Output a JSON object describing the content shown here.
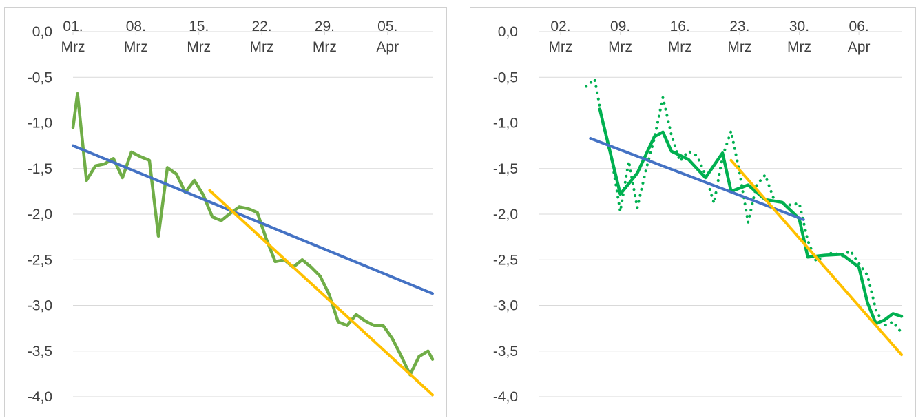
{
  "colors": {
    "measured": "#70ad47",
    "measured_dark": "#00b050",
    "trend_early": "#4472c4",
    "trend_late": "#ffc000",
    "grid": "#d9d9d9",
    "text": "#404040"
  },
  "chart_data": [
    {
      "type": "line",
      "title": "",
      "xlabel": "",
      "ylabel": "",
      "x_axis_position": "top",
      "grid": true,
      "ylim": [
        -4.0,
        0.0
      ],
      "yticks": [
        "0,0",
        "-0,5",
        "-1,0",
        "-1,5",
        "-2,0",
        "-2,5",
        "-3,0",
        "-3,5",
        "-4,0"
      ],
      "x_ticks": [
        {
          "day": 0,
          "line1": "01.",
          "line2": "Mrz"
        },
        {
          "day": 7,
          "line1": "08.",
          "line2": "Mrz"
        },
        {
          "day": 14,
          "line1": "15.",
          "line2": "Mrz"
        },
        {
          "day": 21,
          "line1": "22.",
          "line2": "Mrz"
        },
        {
          "day": 28,
          "line1": "29.",
          "line2": "Mrz"
        },
        {
          "day": 35,
          "line1": "05.",
          "line2": "Apr"
        }
      ],
      "x_range_days": [
        0,
        40
      ],
      "series": [
        {
          "style": "solid",
          "color_key": "measured",
          "points": [
            [
              0,
              -1.05
            ],
            [
              0.5,
              -0.68
            ],
            [
              1.5,
              -1.63
            ],
            [
              2.5,
              -1.47
            ],
            [
              3.5,
              -1.45
            ],
            [
              4.5,
              -1.39
            ],
            [
              5.5,
              -1.6
            ],
            [
              6.5,
              -1.32
            ],
            [
              7.5,
              -1.37
            ],
            [
              8.5,
              -1.41
            ],
            [
              9.5,
              -2.24
            ],
            [
              10.5,
              -1.49
            ],
            [
              11.5,
              -1.56
            ],
            [
              12.5,
              -1.76
            ],
            [
              13.5,
              -1.63
            ],
            [
              14.5,
              -1.79
            ],
            [
              15.5,
              -2.03
            ],
            [
              16.5,
              -2.07
            ],
            [
              17.5,
              -1.99
            ],
            [
              18.5,
              -1.92
            ],
            [
              19.5,
              -1.94
            ],
            [
              20.5,
              -1.98
            ],
            [
              21.5,
              -2.27
            ],
            [
              22.5,
              -2.52
            ],
            [
              23.5,
              -2.5
            ],
            [
              24.5,
              -2.58
            ],
            [
              25.5,
              -2.5
            ],
            [
              26.5,
              -2.58
            ],
            [
              27.5,
              -2.68
            ],
            [
              28.5,
              -2.88
            ],
            [
              29.5,
              -3.18
            ],
            [
              30.5,
              -3.22
            ],
            [
              31.5,
              -3.1
            ],
            [
              32.5,
              -3.17
            ],
            [
              33.5,
              -3.22
            ],
            [
              34.5,
              -3.22
            ],
            [
              35.5,
              -3.36
            ],
            [
              36.5,
              -3.55
            ],
            [
              37.5,
              -3.76
            ],
            [
              38.5,
              -3.56
            ],
            [
              39.5,
              -3.5
            ],
            [
              40.0,
              -3.59
            ]
          ]
        },
        {
          "style": "trend",
          "color_key": "trend_early",
          "points": [
            [
              0,
              -1.25
            ],
            [
              40.0,
              -2.87
            ]
          ]
        },
        {
          "style": "trend",
          "color_key": "trend_late",
          "points": [
            [
              15.2,
              -1.74
            ],
            [
              40.0,
              -3.98
            ]
          ]
        }
      ]
    },
    {
      "type": "line",
      "title": "",
      "xlabel": "",
      "ylabel": "",
      "x_axis_position": "top",
      "grid": true,
      "ylim": [
        -4.0,
        0.0
      ],
      "yticks": [
        "0,0",
        "-0,5",
        "-1,0",
        "-1,5",
        "-2,0",
        "-2,5",
        "-3,0",
        "-3,5",
        "-4,0"
      ],
      "x_ticks": [
        {
          "day": 0,
          "line1": "02.",
          "line2": "Mrz"
        },
        {
          "day": 7,
          "line1": "09.",
          "line2": "Mrz"
        },
        {
          "day": 14,
          "line1": "16.",
          "line2": "Mrz"
        },
        {
          "day": 21,
          "line1": "23.",
          "line2": "Mrz"
        },
        {
          "day": 28,
          "line1": "30.",
          "line2": "Mrz"
        },
        {
          "day": 35,
          "line1": "06.",
          "line2": "Apr"
        }
      ],
      "x_range_days": [
        -2.5,
        40
      ],
      "series": [
        {
          "style": "dotted",
          "color_key": "measured_dark",
          "points": [
            [
              3,
              -0.6
            ],
            [
              4,
              -0.52
            ],
            [
              5,
              -1.02
            ],
            [
              6,
              -1.4
            ],
            [
              7,
              -1.97
            ],
            [
              8,
              -1.42
            ],
            [
              9,
              -1.93
            ],
            [
              10,
              -1.52
            ],
            [
              11,
              -1.17
            ],
            [
              12,
              -0.72
            ],
            [
              13,
              -1.13
            ],
            [
              14,
              -1.42
            ],
            [
              15,
              -1.31
            ],
            [
              16,
              -1.36
            ],
            [
              17,
              -1.57
            ],
            [
              18,
              -1.88
            ],
            [
              19,
              -1.37
            ],
            [
              20,
              -1.09
            ],
            [
              21,
              -1.54
            ],
            [
              22,
              -2.09
            ],
            [
              23,
              -1.68
            ],
            [
              24,
              -1.57
            ],
            [
              25,
              -1.83
            ],
            [
              26,
              -1.88
            ],
            [
              27,
              -1.9
            ],
            [
              28,
              -1.88
            ],
            [
              29,
              -2.29
            ],
            [
              30,
              -2.52
            ],
            [
              31,
              -2.45
            ],
            [
              32,
              -2.42
            ],
            [
              33,
              -2.46
            ],
            [
              34,
              -2.4
            ],
            [
              35,
              -2.54
            ],
            [
              36,
              -2.67
            ],
            [
              37,
              -3.05
            ],
            [
              38,
              -3.22
            ],
            [
              39,
              -3.18
            ],
            [
              40,
              -3.3
            ]
          ]
        },
        {
          "style": "solid",
          "color_key": "measured_dark",
          "points": [
            [
              4.6,
              -0.85
            ],
            [
              7,
              -1.78
            ],
            [
              9,
              -1.55
            ],
            [
              11,
              -1.15
            ],
            [
              12,
              -1.1
            ],
            [
              13,
              -1.31
            ],
            [
              15,
              -1.4
            ],
            [
              17,
              -1.6
            ],
            [
              19,
              -1.33
            ],
            [
              20,
              -1.75
            ],
            [
              22,
              -1.68
            ],
            [
              24,
              -1.84
            ],
            [
              26,
              -1.87
            ],
            [
              28,
              -2.05
            ],
            [
              29,
              -2.47
            ],
            [
              31,
              -2.45
            ],
            [
              33,
              -2.44
            ],
            [
              35,
              -2.58
            ],
            [
              36,
              -2.97
            ],
            [
              37,
              -3.2
            ],
            [
              38,
              -3.16
            ],
            [
              39,
              -3.09
            ],
            [
              40,
              -3.12
            ]
          ]
        },
        {
          "style": "trend",
          "color_key": "trend_early",
          "points": [
            [
              3.5,
              -1.17
            ],
            [
              28.5,
              -2.06
            ]
          ]
        },
        {
          "style": "trend",
          "color_key": "trend_late",
          "points": [
            [
              20.0,
              -1.41
            ],
            [
              40.0,
              -3.54
            ]
          ]
        }
      ]
    }
  ]
}
